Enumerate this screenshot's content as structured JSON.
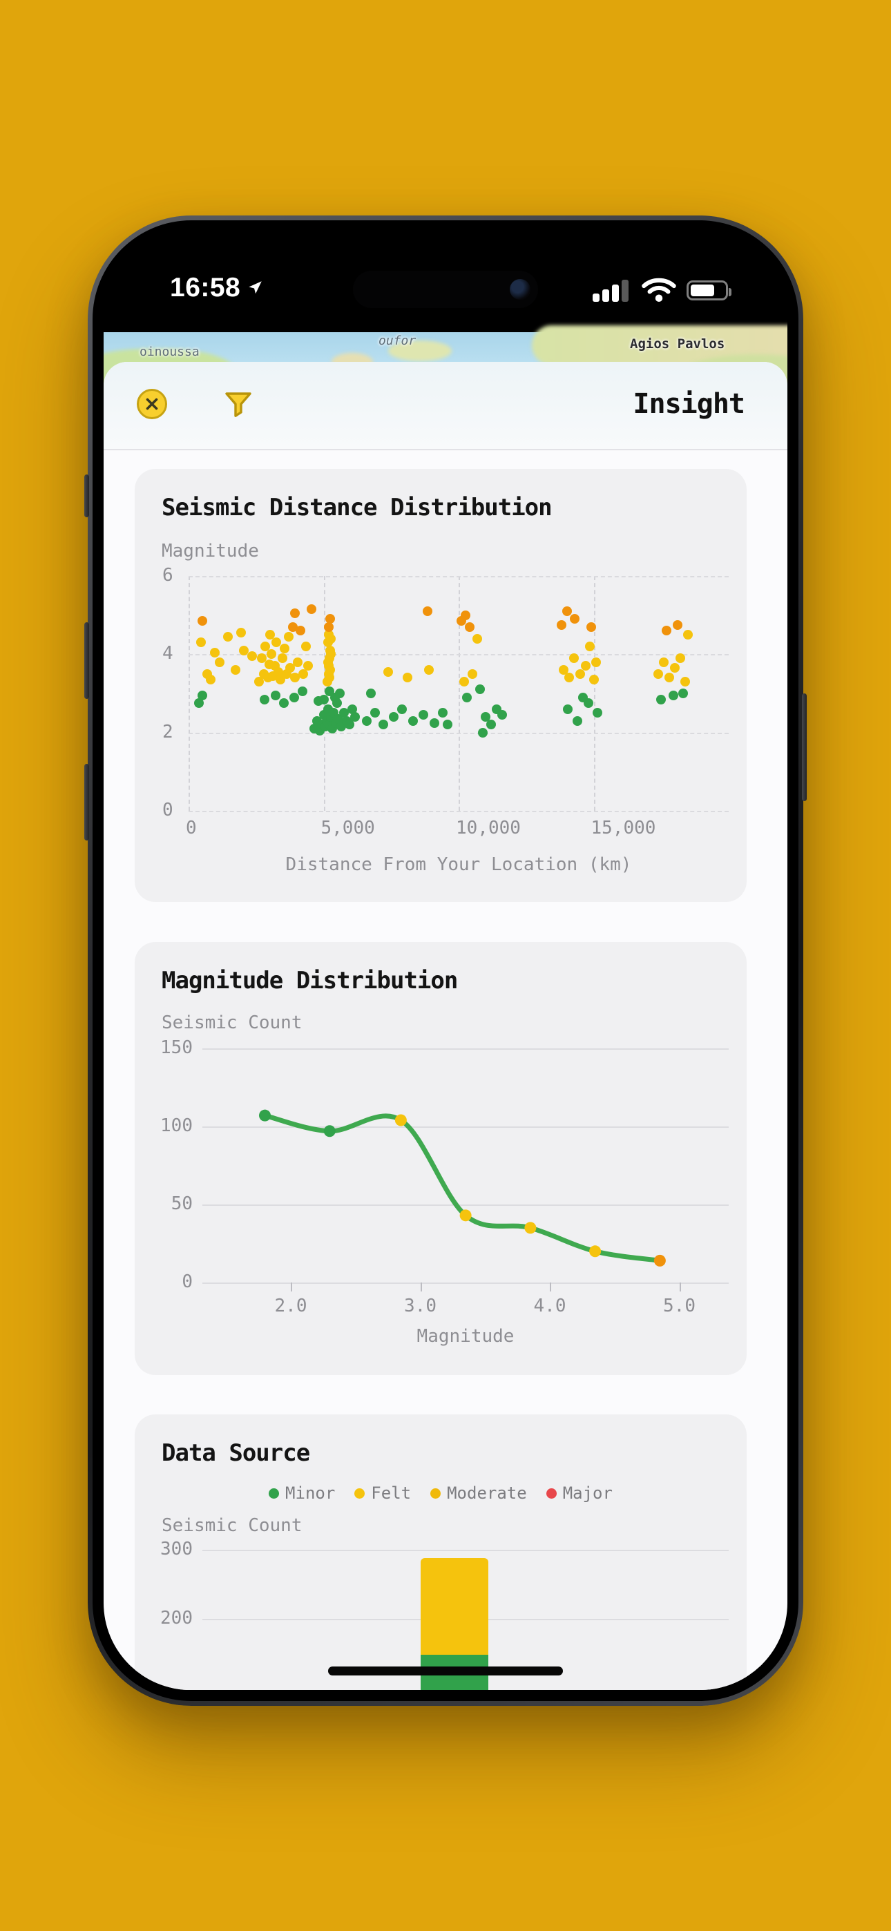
{
  "status_bar": {
    "time": "16:58"
  },
  "map": {
    "labels": [
      "oinoussa",
      "oufor",
      "Agios Pavlos"
    ]
  },
  "sheet": {
    "title": "Insight"
  },
  "colors": {
    "background": "#E0A50C",
    "minor_green": "#31A24B",
    "felt_yellow": "#F5C30D",
    "moderate_yellow": "#F0B90B",
    "major_red": "#E8474B",
    "strong_orange": "#F0920B",
    "line_green": "#3FA94F"
  },
  "chart_data": [
    {
      "type": "scatter",
      "title": "Seismic Distance Distribution",
      "xlabel": "Distance From Your Location (km)",
      "ylabel": "Magnitude",
      "xlim": [
        0,
        20000
      ],
      "ylim": [
        0,
        6
      ],
      "xticks": [
        0,
        5000,
        10000,
        15000
      ],
      "xtick_labels": [
        "0",
        "5,000",
        "10,000",
        "15,000"
      ],
      "yticks": [
        6,
        4,
        2,
        0
      ],
      "ytick_labels": [
        "6",
        "4",
        "2",
        "0"
      ],
      "grid": "dashed",
      "legend_position": "none",
      "color_scale": [
        {
          "label": "minor",
          "max": 3.25,
          "color": "#31A24B"
        },
        {
          "label": "felt",
          "max": 4.55,
          "color": "#F5C30D"
        },
        {
          "label": "strong",
          "max": 9,
          "color": "#F0920B"
        }
      ],
      "points": [
        [
          380,
          2.75
        ],
        [
          520,
          2.95
        ],
        [
          450,
          4.3
        ],
        [
          500,
          4.85
        ],
        [
          980,
          4.05
        ],
        [
          700,
          3.5
        ],
        [
          1450,
          4.45
        ],
        [
          1150,
          3.8
        ],
        [
          1750,
          3.6
        ],
        [
          2050,
          4.1
        ],
        [
          2350,
          3.95
        ],
        [
          1950,
          4.55
        ],
        [
          820,
          3.35
        ],
        [
          2600,
          3.3
        ],
        [
          2720,
          3.9
        ],
        [
          2780,
          3.5
        ],
        [
          2850,
          4.2
        ],
        [
          2930,
          3.4
        ],
        [
          2990,
          3.75
        ],
        [
          3060,
          4.0
        ],
        [
          3130,
          3.45
        ],
        [
          3190,
          3.7
        ],
        [
          3260,
          4.3
        ],
        [
          3330,
          3.55
        ],
        [
          3410,
          3.35
        ],
        [
          3470,
          3.9
        ],
        [
          3550,
          4.15
        ],
        [
          3620,
          3.5
        ],
        [
          3700,
          4.45
        ],
        [
          3770,
          3.65
        ],
        [
          3850,
          4.7
        ],
        [
          3950,
          5.05
        ],
        [
          3940,
          3.4
        ],
        [
          4040,
          3.8
        ],
        [
          4140,
          4.6
        ],
        [
          4240,
          3.5
        ],
        [
          4340,
          4.2
        ],
        [
          4550,
          5.15
        ],
        [
          2820,
          2.85
        ],
        [
          3210,
          2.95
        ],
        [
          3520,
          2.75
        ],
        [
          3910,
          2.9
        ],
        [
          4210,
          3.05
        ],
        [
          3010,
          4.5
        ],
        [
          4420,
          3.7
        ],
        [
          4650,
          2.1
        ],
        [
          4760,
          2.3
        ],
        [
          4860,
          2.05
        ],
        [
          4950,
          2.2
        ],
        [
          5010,
          2.45
        ],
        [
          5060,
          2.15
        ],
        [
          5110,
          2.3
        ],
        [
          5160,
          2.6
        ],
        [
          5210,
          2.2
        ],
        [
          5260,
          2.4
        ],
        [
          5310,
          2.1
        ],
        [
          5360,
          2.5
        ],
        [
          5460,
          2.25
        ],
        [
          5560,
          2.35
        ],
        [
          5660,
          2.15
        ],
        [
          5760,
          2.5
        ],
        [
          5860,
          2.3
        ],
        [
          5960,
          2.2
        ],
        [
          6060,
          2.6
        ],
        [
          6160,
          2.4
        ],
        [
          4810,
          2.8
        ],
        [
          5410,
          2.9
        ],
        [
          5510,
          2.75
        ],
        [
          5610,
          3.0
        ],
        [
          5020,
          2.85
        ],
        [
          5220,
          3.05
        ],
        [
          5150,
          3.3
        ],
        [
          5180,
          3.5
        ],
        [
          5200,
          3.7
        ],
        [
          5230,
          3.9
        ],
        [
          5250,
          4.1
        ],
        [
          5170,
          4.3
        ],
        [
          5190,
          4.5
        ],
        [
          5210,
          3.4
        ],
        [
          5240,
          3.6
        ],
        [
          5160,
          3.8
        ],
        [
          5260,
          4.0
        ],
        [
          5270,
          4.4
        ],
        [
          5200,
          4.7
        ],
        [
          5240,
          4.9
        ],
        [
          6600,
          2.3
        ],
        [
          6900,
          2.5
        ],
        [
          7200,
          2.2
        ],
        [
          7600,
          2.4
        ],
        [
          7900,
          2.6
        ],
        [
          8300,
          2.3
        ],
        [
          8700,
          2.45
        ],
        [
          9100,
          2.25
        ],
        [
          9400,
          2.5
        ],
        [
          6750,
          3.0
        ],
        [
          7400,
          3.55
        ],
        [
          8100,
          3.4
        ],
        [
          8900,
          3.6
        ],
        [
          8850,
          5.1
        ],
        [
          9600,
          2.2
        ],
        [
          10100,
          4.85
        ],
        [
          10260,
          5.0
        ],
        [
          10420,
          4.7
        ],
        [
          10200,
          3.3
        ],
        [
          10500,
          3.5
        ],
        [
          10800,
          3.1
        ],
        [
          11000,
          2.4
        ],
        [
          11200,
          2.2
        ],
        [
          11400,
          2.6
        ],
        [
          10900,
          2.0
        ],
        [
          11600,
          2.45
        ],
        [
          10300,
          2.9
        ],
        [
          10700,
          4.4
        ],
        [
          13800,
          4.75
        ],
        [
          14020,
          5.1
        ],
        [
          14300,
          4.9
        ],
        [
          14900,
          4.7
        ],
        [
          13900,
          3.6
        ],
        [
          14100,
          3.4
        ],
        [
          14260,
          3.9
        ],
        [
          14500,
          3.5
        ],
        [
          14700,
          3.7
        ],
        [
          14850,
          4.2
        ],
        [
          15000,
          3.35
        ],
        [
          15100,
          3.8
        ],
        [
          14050,
          2.6
        ],
        [
          14400,
          2.3
        ],
        [
          14800,
          2.75
        ],
        [
          15150,
          2.5
        ],
        [
          14600,
          2.9
        ],
        [
          17400,
          3.5
        ],
        [
          17600,
          3.8
        ],
        [
          17800,
          3.4
        ],
        [
          18000,
          3.65
        ],
        [
          18200,
          3.9
        ],
        [
          18400,
          3.3
        ],
        [
          17700,
          4.6
        ],
        [
          18100,
          4.75
        ],
        [
          17500,
          2.85
        ],
        [
          18300,
          3.0
        ],
        [
          18500,
          4.5
        ],
        [
          17950,
          2.95
        ]
      ]
    },
    {
      "type": "line",
      "title": "Magnitude Distribution",
      "xlabel": "Magnitude",
      "ylabel": "Seismic Count",
      "xlim": [
        1.3,
        5.35
      ],
      "ylim": [
        0,
        150
      ],
      "xticks": [
        2.0,
        3.0,
        4.0,
        5.0
      ],
      "xtick_labels": [
        "2.0",
        "3.0",
        "4.0",
        "5.0"
      ],
      "yticks": [
        150,
        100,
        50,
        0
      ],
      "ytick_labels": [
        "150",
        "100",
        "50",
        "0"
      ],
      "grid": "horizontal-solid",
      "line_color": "#3FA94F",
      "points": [
        {
          "x": 1.8,
          "y": 107,
          "color": "#31A24B"
        },
        {
          "x": 2.3,
          "y": 97,
          "color": "#31A24B"
        },
        {
          "x": 2.85,
          "y": 104,
          "color": "#F5C30D"
        },
        {
          "x": 3.35,
          "y": 43,
          "color": "#F5C30D"
        },
        {
          "x": 3.85,
          "y": 35,
          "color": "#F5C30D"
        },
        {
          "x": 4.35,
          "y": 20,
          "color": "#F5C30D"
        },
        {
          "x": 4.85,
          "y": 14,
          "color": "#F0920B"
        }
      ]
    },
    {
      "type": "stacked-bar",
      "title": "Data Source",
      "ylabel": "Seismic Count",
      "ylim": [
        0,
        300
      ],
      "yticks": [
        300,
        200
      ],
      "ytick_labels": [
        "300",
        "200"
      ],
      "grid": "horizontal-solid",
      "legend_position": "top-center",
      "legend": [
        {
          "label": "Minor",
          "color": "#31A24B"
        },
        {
          "label": "Felt",
          "color": "#F5C30D"
        },
        {
          "label": "Moderate",
          "color": "#F0B90B"
        },
        {
          "label": "Major",
          "color": "#E8474B"
        }
      ],
      "bars": [
        {
          "label": "",
          "segments": [
            {
              "name": "Minor",
              "value": 148
            },
            {
              "name": "Felt",
              "value": 140
            }
          ]
        }
      ]
    }
  ]
}
